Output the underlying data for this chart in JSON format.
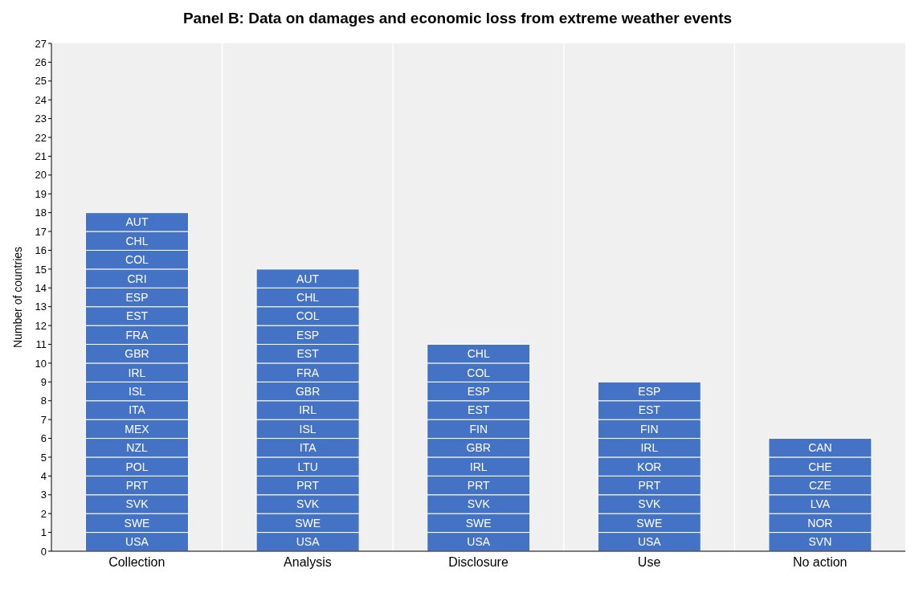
{
  "chart_data": {
    "type": "bar",
    "title": "Panel B: Data on damages and economic loss from extreme weather events",
    "ylabel": "Number of countries",
    "categories": [
      "Collection",
      "Analysis",
      "Disclosure",
      "Use",
      "No action"
    ],
    "stacked": true,
    "grid": "x",
    "ylim": [
      0,
      27
    ],
    "yticks": [
      0,
      1,
      2,
      3,
      4,
      5,
      6,
      7,
      8,
      9,
      10,
      11,
      12,
      13,
      14,
      15,
      16,
      17,
      18,
      19,
      20,
      21,
      22,
      23,
      24,
      25,
      26,
      27
    ],
    "series": [
      {
        "color": "#4472c4",
        "values": [
          1,
          1,
          1,
          1,
          1
        ],
        "value_labels": [
          "USA",
          "USA",
          "USA",
          "USA",
          "SVN"
        ]
      },
      {
        "color": "#4472c4",
        "values": [
          1,
          1,
          1,
          1,
          1
        ],
        "value_labels": [
          "SWE",
          "SWE",
          "SWE",
          "SWE",
          "NOR"
        ]
      },
      {
        "color": "#4472c4",
        "values": [
          1,
          1,
          1,
          1,
          1
        ],
        "value_labels": [
          "SVK",
          "SVK",
          "SVK",
          "SVK",
          "LVA"
        ]
      },
      {
        "color": "#4472c4",
        "values": [
          1,
          1,
          1,
          1,
          1
        ],
        "value_labels": [
          "PRT",
          "PRT",
          "PRT",
          "PRT",
          "CZE"
        ]
      },
      {
        "color": "#4472c4",
        "values": [
          1,
          1,
          1,
          1,
          1
        ],
        "value_labels": [
          "POL",
          "LTU",
          "IRL",
          "KOR",
          "CHE"
        ]
      },
      {
        "color": "#4472c4",
        "values": [
          1,
          1,
          1,
          1,
          1
        ],
        "value_labels": [
          "NZL",
          "ITA",
          "GBR",
          "IRL",
          "CAN"
        ]
      },
      {
        "color": "#4472c4",
        "values": [
          1,
          1,
          1,
          1,
          null
        ],
        "value_labels": [
          "MEX",
          "ISL",
          "FIN",
          "FIN",
          null
        ]
      },
      {
        "color": "#4472c4",
        "values": [
          1,
          1,
          1,
          1,
          null
        ],
        "value_labels": [
          "ITA",
          "IRL",
          "EST",
          "EST",
          null
        ]
      },
      {
        "color": "#4472c4",
        "values": [
          1,
          1,
          1,
          1,
          null
        ],
        "value_labels": [
          "ISL",
          "GBR",
          "ESP",
          "ESP",
          null
        ]
      },
      {
        "color": "#4472c4",
        "values": [
          1,
          1,
          1,
          null,
          null
        ],
        "value_labels": [
          "IRL",
          "FRA",
          "COL",
          null,
          null
        ]
      },
      {
        "color": "#4472c4",
        "values": [
          1,
          1,
          1,
          null,
          null
        ],
        "value_labels": [
          "GBR",
          "EST",
          "CHL",
          null,
          null
        ]
      },
      {
        "color": "#4472c4",
        "values": [
          1,
          1,
          null,
          null,
          null
        ],
        "value_labels": [
          "FRA",
          "ESP",
          null,
          null,
          null
        ]
      },
      {
        "color": "#4472c4",
        "values": [
          1,
          1,
          null,
          null,
          null
        ],
        "value_labels": [
          "EST",
          "COL",
          null,
          null,
          null
        ]
      },
      {
        "color": "#4472c4",
        "values": [
          1,
          1,
          null,
          null,
          null
        ],
        "value_labels": [
          "ESP",
          "CHL",
          null,
          null,
          null
        ]
      },
      {
        "color": "#4472c4",
        "values": [
          1,
          1,
          null,
          null,
          null
        ],
        "value_labels": [
          "CRI",
          "AUT",
          null,
          null,
          null
        ]
      },
      {
        "color": "#4472c4",
        "values": [
          1,
          null,
          null,
          null,
          null
        ],
        "value_labels": [
          "COL",
          null,
          null,
          null,
          null
        ]
      },
      {
        "color": "#4472c4",
        "values": [
          1,
          null,
          null,
          null,
          null
        ],
        "value_labels": [
          "CHL",
          null,
          null,
          null,
          null
        ]
      },
      {
        "color": "#4472c4",
        "values": [
          1,
          null,
          null,
          null,
          null
        ],
        "value_labels": [
          "AUT",
          null,
          null,
          null,
          null
        ]
      }
    ]
  }
}
